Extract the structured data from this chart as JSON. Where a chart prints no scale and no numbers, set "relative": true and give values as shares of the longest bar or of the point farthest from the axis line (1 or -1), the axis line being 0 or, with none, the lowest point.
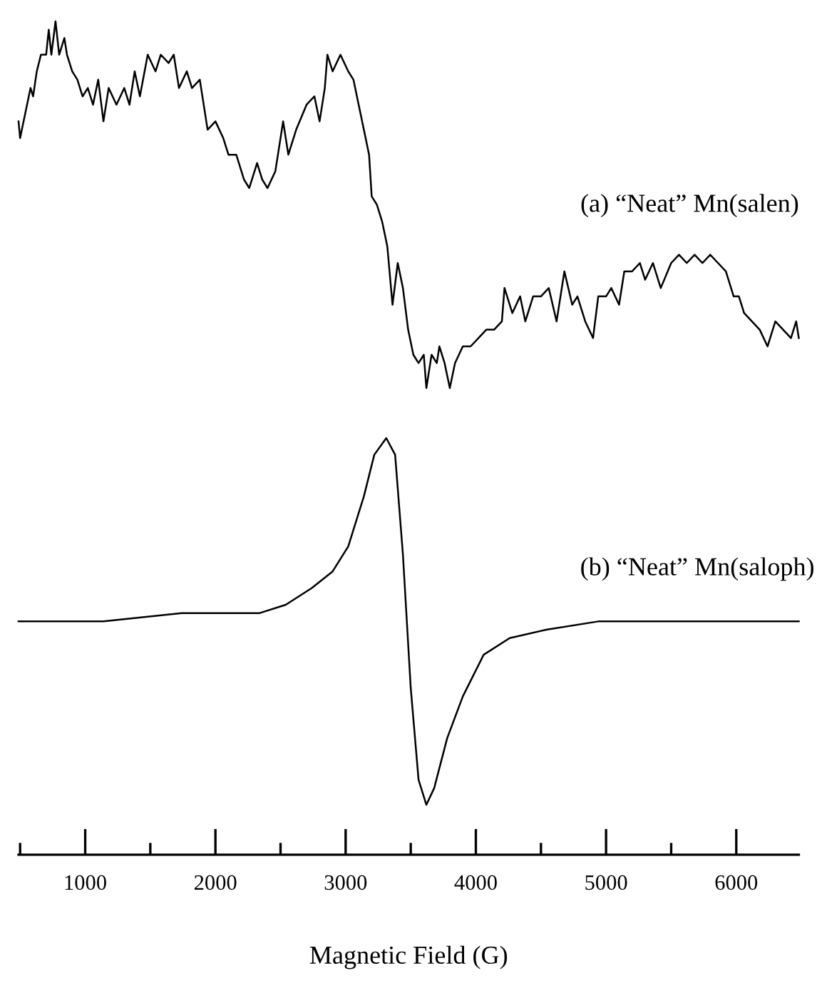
{
  "chart_data": {
    "type": "line",
    "relative": true,
    "tick_labels": "x",
    "xlim": [
      488,
      6480
    ],
    "grid": false,
    "marker": "none",
    "line_style": "solid",
    "xticks": [
      {
        "value": 500,
        "label": null
      },
      1000,
      {
        "value": 1500,
        "label": null
      },
      2000,
      {
        "value": 2500,
        "label": null
      },
      3000,
      {
        "value": 3500,
        "label": null
      },
      4000,
      {
        "value": 4500,
        "label": null
      },
      5000,
      {
        "value": 5500,
        "label": null
      },
      6000
    ],
    "xlabel": "Magnetic Field (G)",
    "annotations": [
      "(a) “Neat” Mn(salen)",
      "(b) “Neat” Mn(saloph)"
    ],
    "series": [
      {
        "color": "#000000",
        "x": [
          488,
          500,
          540,
          580,
          600,
          628,
          660,
          700,
          720,
          740,
          772,
          800,
          840,
          860,
          900,
          940,
          980,
          1020,
          1060,
          1100,
          1140,
          1180,
          1240,
          1300,
          1340,
          1380,
          1420,
          1480,
          1540,
          1580,
          1640,
          1680,
          1720,
          1780,
          1820,
          1880,
          1940,
          2000,
          2060,
          2100,
          2160,
          2220,
          2260,
          2320,
          2360,
          2400,
          2460,
          2520,
          2560,
          2620,
          2700,
          2760,
          2800,
          2840,
          2860,
          2900,
          2960,
          3020,
          3060,
          3100,
          3140,
          3180,
          3200,
          3240,
          3280,
          3320,
          3360,
          3400,
          3440,
          3480,
          3520,
          3560,
          3600,
          3620,
          3660,
          3700,
          3720,
          3760,
          3800,
          3840,
          3900,
          3960,
          4020,
          4080,
          4140,
          4200,
          4220,
          4280,
          4340,
          4380,
          4440,
          4500,
          4560,
          4620,
          4680,
          4740,
          4780,
          4840,
          4900,
          4940,
          5000,
          5040,
          5100,
          5140,
          5200,
          5260,
          5300,
          5360,
          5420,
          5500,
          5560,
          5620,
          5680,
          5740,
          5800,
          5860,
          5920,
          5980,
          6020,
          6060,
          6120,
          6180,
          6240,
          6300,
          6360,
          6420,
          6460,
          6480
        ],
        "values": [
          0.88,
          0.86,
          0.89,
          0.92,
          0.91,
          0.94,
          0.96,
          0.96,
          0.99,
          0.96,
          1.0,
          0.96,
          0.98,
          0.96,
          0.94,
          0.93,
          0.91,
          0.92,
          0.9,
          0.93,
          0.88,
          0.92,
          0.9,
          0.92,
          0.9,
          0.94,
          0.91,
          0.96,
          0.94,
          0.96,
          0.95,
          0.96,
          0.92,
          0.94,
          0.92,
          0.93,
          0.87,
          0.88,
          0.86,
          0.84,
          0.84,
          0.81,
          0.8,
          0.83,
          0.81,
          0.8,
          0.82,
          0.88,
          0.84,
          0.87,
          0.9,
          0.91,
          0.88,
          0.92,
          0.96,
          0.94,
          0.96,
          0.94,
          0.93,
          0.9,
          0.87,
          0.84,
          0.79,
          0.78,
          0.76,
          0.73,
          0.66,
          0.71,
          0.68,
          0.63,
          0.6,
          0.59,
          0.6,
          0.56,
          0.6,
          0.59,
          0.61,
          0.59,
          0.56,
          0.59,
          0.61,
          0.61,
          0.62,
          0.63,
          0.63,
          0.64,
          0.68,
          0.65,
          0.67,
          0.64,
          0.67,
          0.67,
          0.68,
          0.64,
          0.7,
          0.66,
          0.67,
          0.64,
          0.62,
          0.67,
          0.67,
          0.68,
          0.66,
          0.7,
          0.7,
          0.71,
          0.69,
          0.71,
          0.68,
          0.71,
          0.72,
          0.71,
          0.72,
          0.71,
          0.72,
          0.71,
          0.7,
          0.67,
          0.67,
          0.65,
          0.64,
          0.63,
          0.61,
          0.64,
          0.63,
          0.62,
          0.64,
          0.62
        ]
      },
      {
        "color": "#000000",
        "x": [
          488,
          1140,
          1740,
          2140,
          2340,
          2540,
          2740,
          2900,
          3020,
          3140,
          3220,
          3312,
          3380,
          3440,
          3500,
          3560,
          3620,
          3680,
          3780,
          3900,
          4060,
          4260,
          4540,
          4940,
          5540,
          6480
        ],
        "values": [
          0.28,
          0.28,
          0.29,
          0.29,
          0.29,
          0.3,
          0.32,
          0.34,
          0.37,
          0.43,
          0.48,
          0.5,
          0.48,
          0.36,
          0.2,
          0.09,
          0.06,
          0.08,
          0.14,
          0.19,
          0.24,
          0.26,
          0.27,
          0.28,
          0.28,
          0.28
        ]
      }
    ]
  }
}
